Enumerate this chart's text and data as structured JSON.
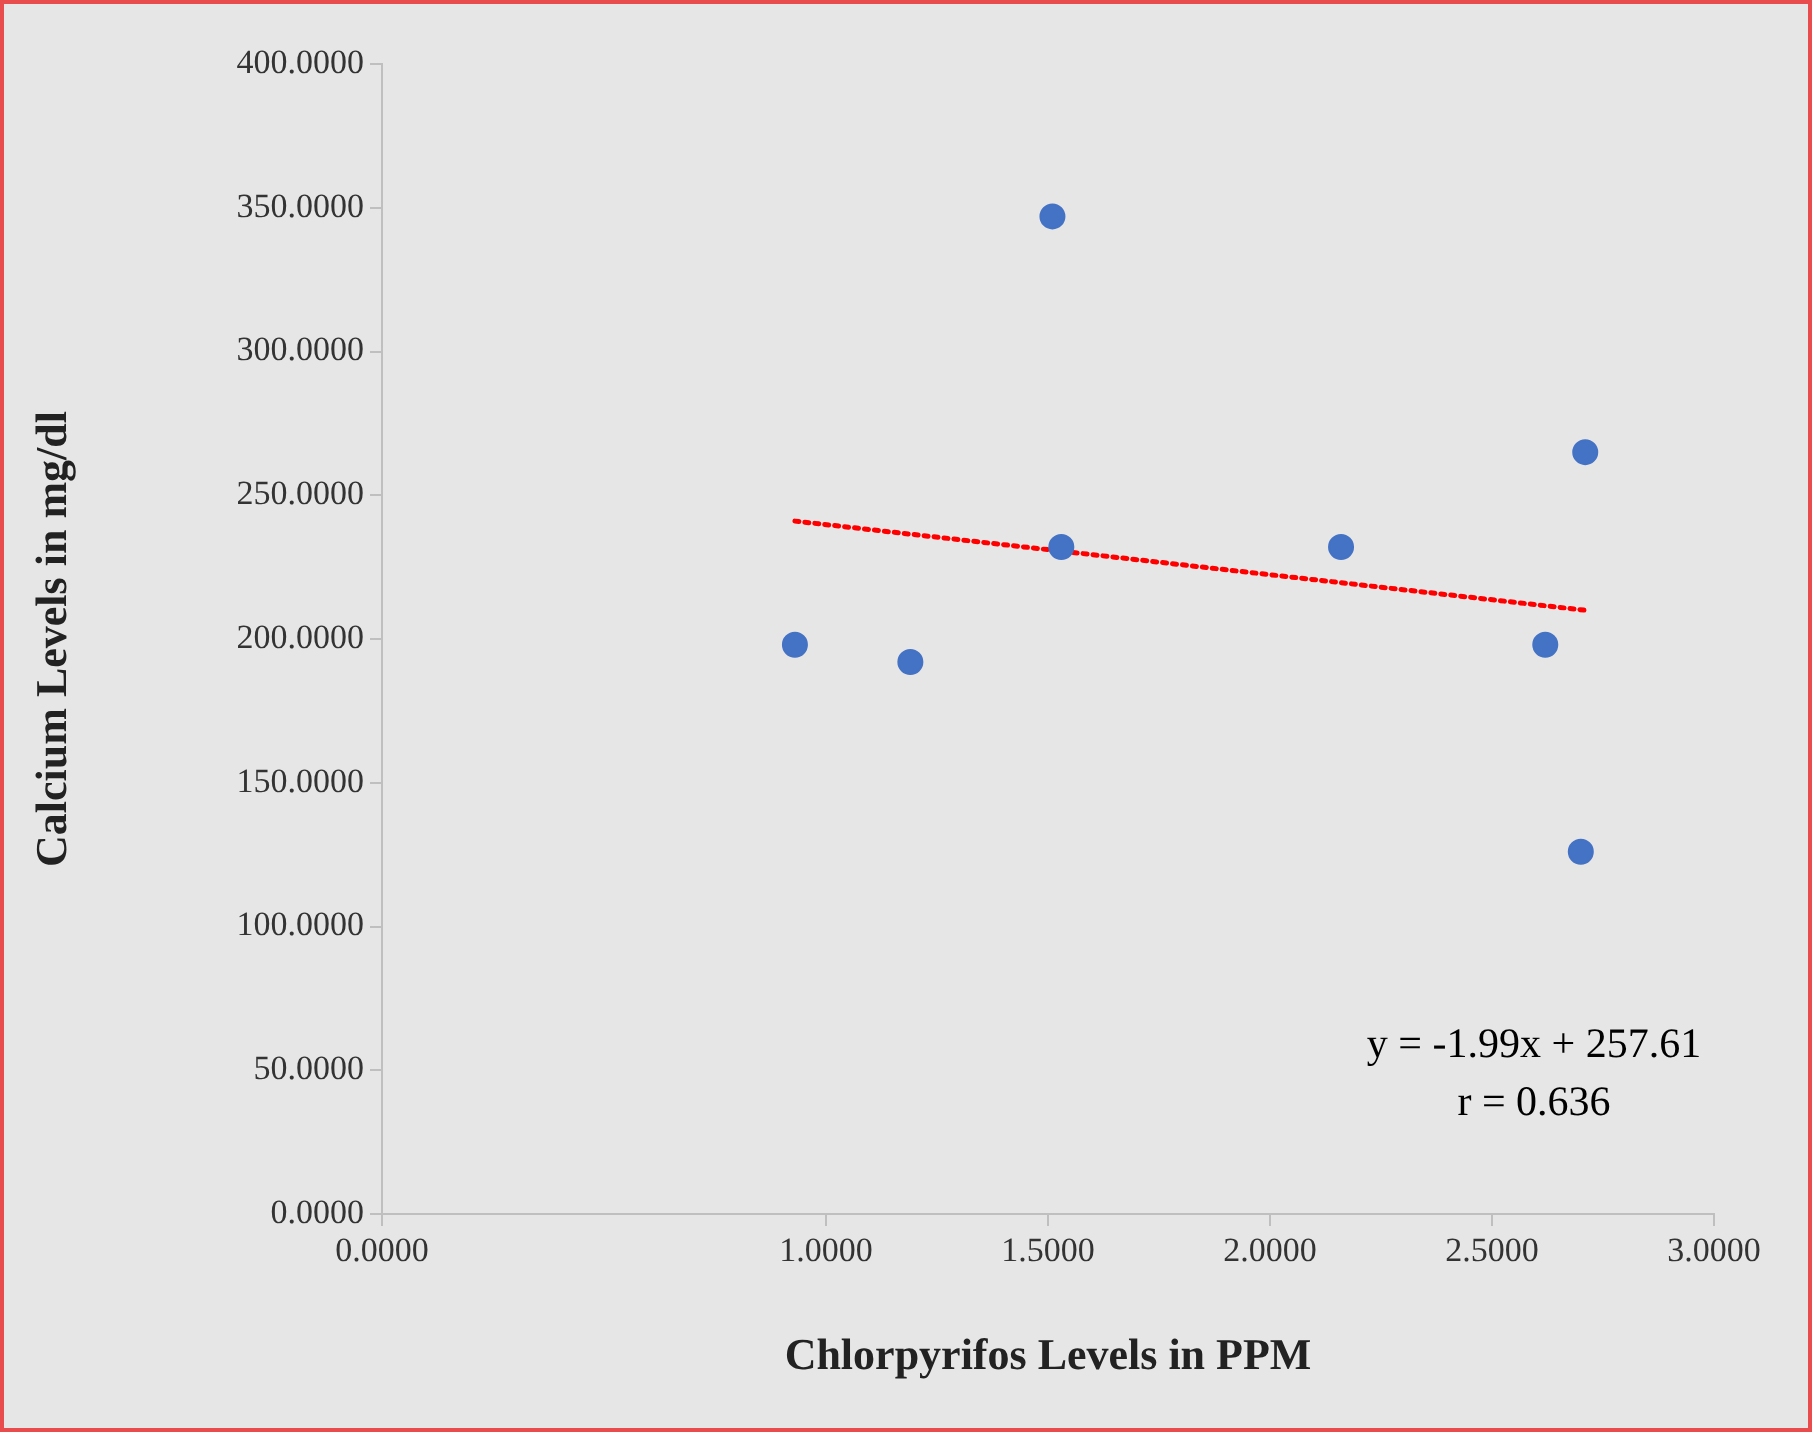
{
  "chart_data": {
    "type": "scatter",
    "xlabel": "Chlorpyrifos Levels in PPM",
    "ylabel": "Calcium Levels in mg/dl",
    "xlim": [
      0,
      3.0
    ],
    "xticks": [
      {
        "value": 0,
        "label": "0.0000"
      },
      {
        "value": 1.0,
        "label": "1.0000"
      },
      {
        "value": 1.5,
        "label": "1.5000"
      },
      {
        "value": 2.0,
        "label": "2.0000"
      },
      {
        "value": 2.5,
        "label": "2.5000"
      },
      {
        "value": 3.0,
        "label": "3.0000"
      }
    ],
    "ylim": [
      0,
      400
    ],
    "yticks": [
      {
        "value": 0,
        "label": "0.0000"
      },
      {
        "value": 50,
        "label": "50.0000"
      },
      {
        "value": 100,
        "label": "100.0000"
      },
      {
        "value": 150,
        "label": "150.0000"
      },
      {
        "value": 200,
        "label": "200.0000"
      },
      {
        "value": 250,
        "label": "250.0000"
      },
      {
        "value": 300,
        "label": "300.0000"
      },
      {
        "value": 350,
        "label": "350.0000"
      },
      {
        "value": 400,
        "label": "400.0000"
      }
    ],
    "grid": false,
    "legend": false,
    "series": [
      {
        "color": "#4472c4",
        "x": [
          0.93,
          1.19,
          1.51,
          1.53,
          2.16,
          2.62,
          2.71,
          2.7
        ],
        "values": [
          198,
          192,
          347,
          232,
          232,
          198,
          265,
          126
        ]
      },
      {
        "type": "line",
        "marker": "none",
        "color": "#ff0000",
        "line_style": "dotted",
        "x": [
          0.93,
          2.71
        ],
        "values": [
          241,
          210
        ]
      }
    ],
    "annotations": [
      "y = -1.99x + 257.61",
      "r = 0.636"
    ]
  }
}
